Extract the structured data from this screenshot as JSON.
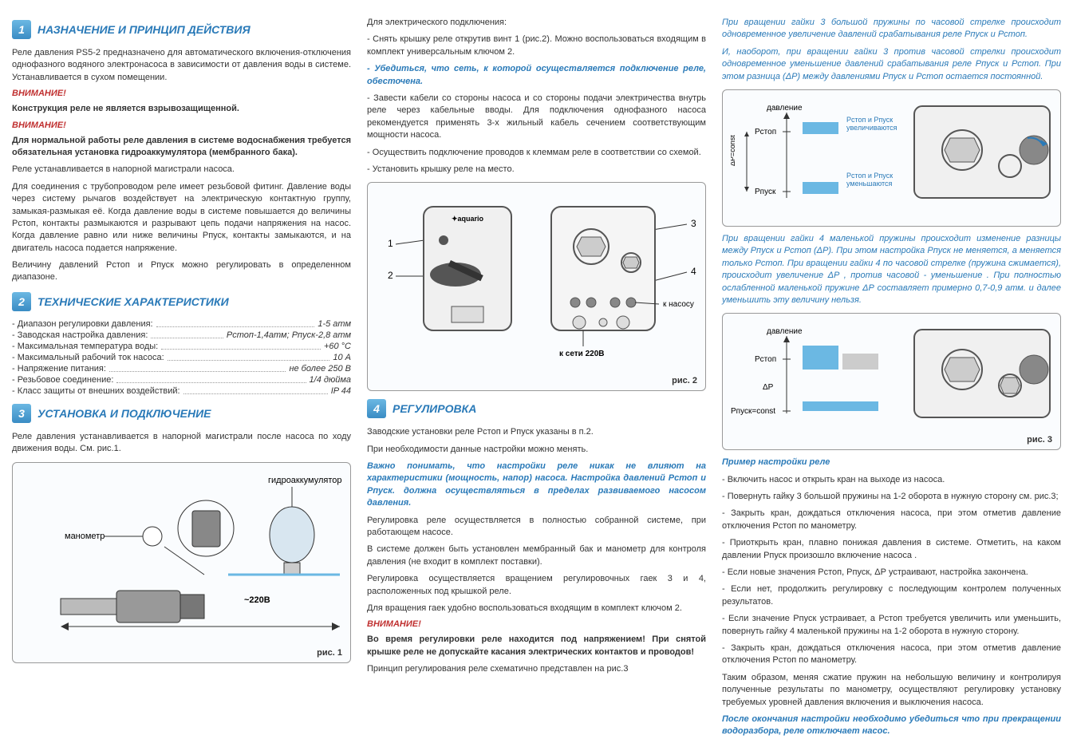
{
  "col1": {
    "s1": {
      "num": "1",
      "title": "НАЗНАЧЕНИЕ И ПРИНЦИП ДЕЙСТВИЯ"
    },
    "p1": "Реле давления PS5-2 предназначено для автоматического включения-отключения однофазного водяного электронасоса в зависимости от давления воды в системе. Устанавливается в сухом помещении.",
    "w1": "ВНИМАНИЕ!",
    "w1t": "Конструкция реле не является взрывозащищенной.",
    "w2": "ВНИМАНИЕ!",
    "w2t": "Для нормальной работы реле давления в системе водоснабжения требуется обязательная установка гидроаккумулятора (мембранного бака).",
    "p2": "Реле устанавливается в напорной магистрали насоса.",
    "p3": "Для соединения с трубопроводом реле имеет резьбовой фитинг. Давление воды через систему рычагов воздействует на электрическую контактную группу, замыкая-размыкая её. Когда давление воды в системе повышается до величины Рстоп, контакты размыкаются и разрывают цепь подачи напряжения на насос. Когда давление равно или ниже величины Рпуск, контакты замыкаются, и на двигатель насоса подается напряжение.",
    "p4": "Величину давлений Рстоп и Рпуск можно регулировать в определенном диапазоне.",
    "s2": {
      "num": "2",
      "title": "ТЕХНИЧЕСКИЕ ХАРАКТЕРИСТИКИ"
    },
    "specs": [
      {
        "l": "- Диапазон регулировки давления:",
        "v": "1-5 атм"
      },
      {
        "l": "- Заводская настройка давления:",
        "v": "Рстоп-1,4атм; Рпуск-2,8 атм"
      },
      {
        "l": "- Максимальная температура воды:",
        "v": "+60 °С"
      },
      {
        "l": "- Максимальный рабочий ток насоса:",
        "v": "10 А"
      },
      {
        "l": "- Напряжение питания:",
        "v": "не более 250 В"
      },
      {
        "l": "- Резьбовое соединение:",
        "v": "1/4 дюйма"
      },
      {
        "l": "- Класс защиты от внешних воздействий:",
        "v": "IP 44"
      }
    ],
    "s3": {
      "num": "3",
      "title": "УСТАНОВКА И ПОДКЛЮЧЕНИЕ"
    },
    "p5": "Реле давления устанавливается в напорной магистрали после насоса по ходу движения воды. См. рис.1.",
    "fig1": {
      "cap": "рис. 1",
      "lbl_hydro": "гидроаккумулятор",
      "lbl_mano": "манометр",
      "lbl_volt": "~220В"
    }
  },
  "col2": {
    "p1": "Для электрического подключения:",
    "p2": "- Снять крышку реле открутив винт 1 (рис.2). Можно воспользоваться входящим в комплект универсальным ключом 2.",
    "p3": "- Убедиться, что сеть, к которой осуществляется подключение реле, обесточена.",
    "p4": "- Завести кабели со стороны насоса и со стороны подачи электричества внутрь реле через кабельные вводы. Для подключения однофазного насоса рекомендуется применять 3-х жильный кабель сечением соответствующим мощности насоса.",
    "p5": "- Осуществить подключение проводов к клеммам реле в соответствии со схемой.",
    "p6": "- Установить крышку реле на место.",
    "fig2": {
      "cap": "рис. 2",
      "lbl_pump": "к насосу",
      "lbl_net": "к сети 220В",
      "n1": "1",
      "n2": "2",
      "n3": "3",
      "n4": "4"
    },
    "s4": {
      "num": "4",
      "title": "РЕГУЛИРОВКА"
    },
    "p7": "Заводские установки реле Рстоп и Рпуск указаны в п.2.",
    "p8": "При необходимости данные настройки можно менять.",
    "p9": "Важно понимать, что настройки реле никак не влияют на характеристики (мощность, напор) насоса. Настройка давлений Рстоп и Рпуск. должна осуществляться в пределах развиваемого насосом давления.",
    "p10": "Регулировка реле осуществляется в полностью собранной системе, при работающем насосе.",
    "p11": "В системе должен быть установлен мембранный бак и манометр для контроля давления (не входит в комплект поставки).",
    "p12": "Регулировка осуществляется вращением регулировочных гаек 3 и 4, расположенных под крышкой реле.",
    "p13": "Для вращения гаек удобно воспользоваться входящим в комплект ключом 2.",
    "w1": "ВНИМАНИЕ!",
    "w1t": "Во время регулировки реле находится под напряжением! При снятой крышке реле не допускайте касания электрических контактов и проводов!",
    "p14": "Принцип регулирования реле схематично представлен на рис.3"
  },
  "col3": {
    "b1": "При вращении гайки 3 большой пружины по часовой стрелке происходит одновременное увеличение давлений срабатывания реле Рпуск и Рстоп.",
    "b2": "И, наоборот, при вращении гайки 3 против часовой стрелки происходит одновременное уменьшение давлений срабатывания реле Рпуск и Рстоп. При этом разница (ΔР) между давлениями Рпуск и Рстоп остается постоянной.",
    "fig3a": {
      "lbl_press": "давление",
      "lbl_stop": "Рстоп",
      "lbl_start": "Рпуск",
      "lbl_dp": "ΔР=const",
      "lbl_up": "Рстоп и Рпуск увеличиваются",
      "lbl_down": "Рстоп и Рпуск уменьшаются"
    },
    "b3": "При вращении гайки 4 маленькой пружины происходит изменение разницы между Рпуск и Рстоп (ΔР). При этом настройка Рпуск не меняется, а меняется только Рстоп. При вращении гайки 4 по часовой стрелке (пружина сжимается), происходит увеличение ΔР , против часовой - уменьшение . При полностью ослабленной маленькой пружине ΔР составляет примерно 0,7-0,9 атм. и далее уменьшить эту величину нельзя.",
    "fig3b": {
      "lbl_press": "давление",
      "lbl_stop": "Рстоп",
      "lbl_dp": "ΔР",
      "lbl_start": "Рпуск=const",
      "cap": "рис. 3"
    },
    "ex_title": "Пример настройки реле",
    "ex1": "- Включить насос и открыть кран на выходе из насоса.",
    "ex2": "- Повернуть гайку 3 большой пружины на 1-2 оборота в нужную сторону см. рис.3;",
    "ex3": "- Закрыть кран, дождаться отключения насоса, при этом отметив давление отключения Рстоп по манометру.",
    "ex4": "- Приоткрыть кран, плавно понижая давления в системе. Отметить, на каком давлении Рпуск произошло включение насоса .",
    "ex5": "- Если новые значения Рстоп, Рпуск, ΔР устраивают, настройка закончена.",
    "ex6": "- Если нет, продолжить регулировку с последующим контролем полученных результатов.",
    "ex7": "- Если значение Рпуск устраивает, а Рстоп требуется увеличить или уменьшить, повернуть гайку 4 маленькой пружины на 1-2 оборота в нужную сторону.",
    "ex8": "- Закрыть кран, дождаться отключения насоса, при этом отметив давление отключения Рстоп по манометру.",
    "p_end": "Таким образом, меняя сжатие пружин на небольшую величину и контролируя полученные результаты по манометру, осуществляют регулировку установку требуемых уровней давления включения и выключения насоса.",
    "p_final": "После окончания настройки необходимо убедиться что при прекращении водоразбора, реле отключает насос."
  }
}
